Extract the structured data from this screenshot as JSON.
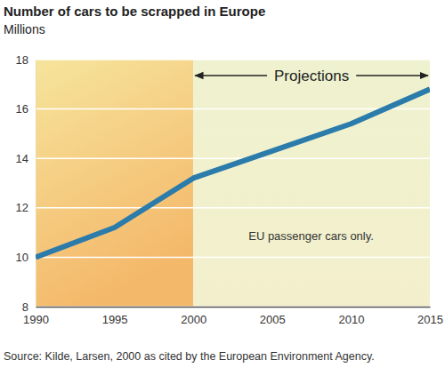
{
  "chart_data": {
    "type": "line",
    "title": "Number of cars to be scrapped in Europe",
    "subtitle": "Millions",
    "x": [
      1990,
      1995,
      2000,
      2005,
      2010,
      2015
    ],
    "values": [
      10.0,
      11.2,
      13.2,
      14.3,
      15.4,
      16.8
    ],
    "color": "#2b7bab",
    "xlim": [
      1990,
      2015
    ],
    "xticks": [
      1990,
      1995,
      2000,
      2005,
      2010,
      2015
    ],
    "ylim": [
      8,
      18
    ],
    "yticks": [
      8,
      10,
      12,
      14,
      16,
      18
    ],
    "grid": true,
    "projections": {
      "label": "Projections",
      "from": 2000,
      "to": 2015
    },
    "note": "EU passenger cars only.",
    "source": "Source: Kilde, Larsen, 2000 as cited by the European Environment Agency."
  }
}
